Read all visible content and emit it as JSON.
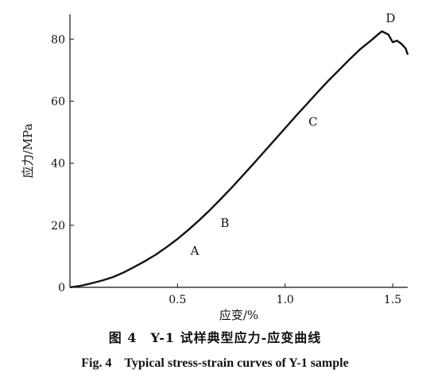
{
  "chart_data": {
    "type": "line",
    "title": "",
    "xlabel": "应变/%",
    "ylabel": "应力/MPa",
    "xlim": [
      0,
      1.57
    ],
    "ylim": [
      0,
      88
    ],
    "xticks": [
      0.5,
      1.0,
      1.5
    ],
    "xtick_labels": [
      "0.5",
      "1.0",
      "1.5"
    ],
    "yticks": [
      0,
      20,
      40,
      60,
      80
    ],
    "ytick_labels": [
      "0",
      "20",
      "40",
      "60",
      "80"
    ],
    "grid": false,
    "legend": "none",
    "line_color": "#111111",
    "series": [
      {
        "name": "",
        "x": [
          0.0,
          0.05,
          0.1,
          0.15,
          0.2,
          0.25,
          0.3,
          0.35,
          0.4,
          0.45,
          0.5,
          0.55,
          0.6,
          0.65,
          0.7,
          0.75,
          0.8,
          0.85,
          0.9,
          0.95,
          1.0,
          1.05,
          1.1,
          1.15,
          1.2,
          1.25,
          1.3,
          1.35,
          1.4,
          1.43,
          1.45,
          1.48,
          1.5,
          1.52,
          1.54,
          1.56,
          1.57
        ],
        "y": [
          0.0,
          0.5,
          1.3,
          2.2,
          3.3,
          4.8,
          6.6,
          8.5,
          10.6,
          13.0,
          15.6,
          18.5,
          21.6,
          24.9,
          28.4,
          32.0,
          35.8,
          39.6,
          43.5,
          47.4,
          51.3,
          55.2,
          59.0,
          62.8,
          66.5,
          70.0,
          73.5,
          76.8,
          79.6,
          81.4,
          82.5,
          81.5,
          79.0,
          79.5,
          78.5,
          77.0,
          75.0
        ]
      }
    ],
    "annotations": [
      {
        "text": "A",
        "x": 0.58,
        "y": 10.5
      },
      {
        "text": "B",
        "x": 0.72,
        "y": 19.5
      },
      {
        "text": "C",
        "x": 1.13,
        "y": 52.0
      },
      {
        "text": "D",
        "x": 1.49,
        "y": 85.5
      }
    ]
  },
  "captions": {
    "cn": "图 4　Y-1 试样典型应力-应变曲线",
    "en": "Fig. 4　Typical stress-strain curves of Y-1 sample"
  }
}
